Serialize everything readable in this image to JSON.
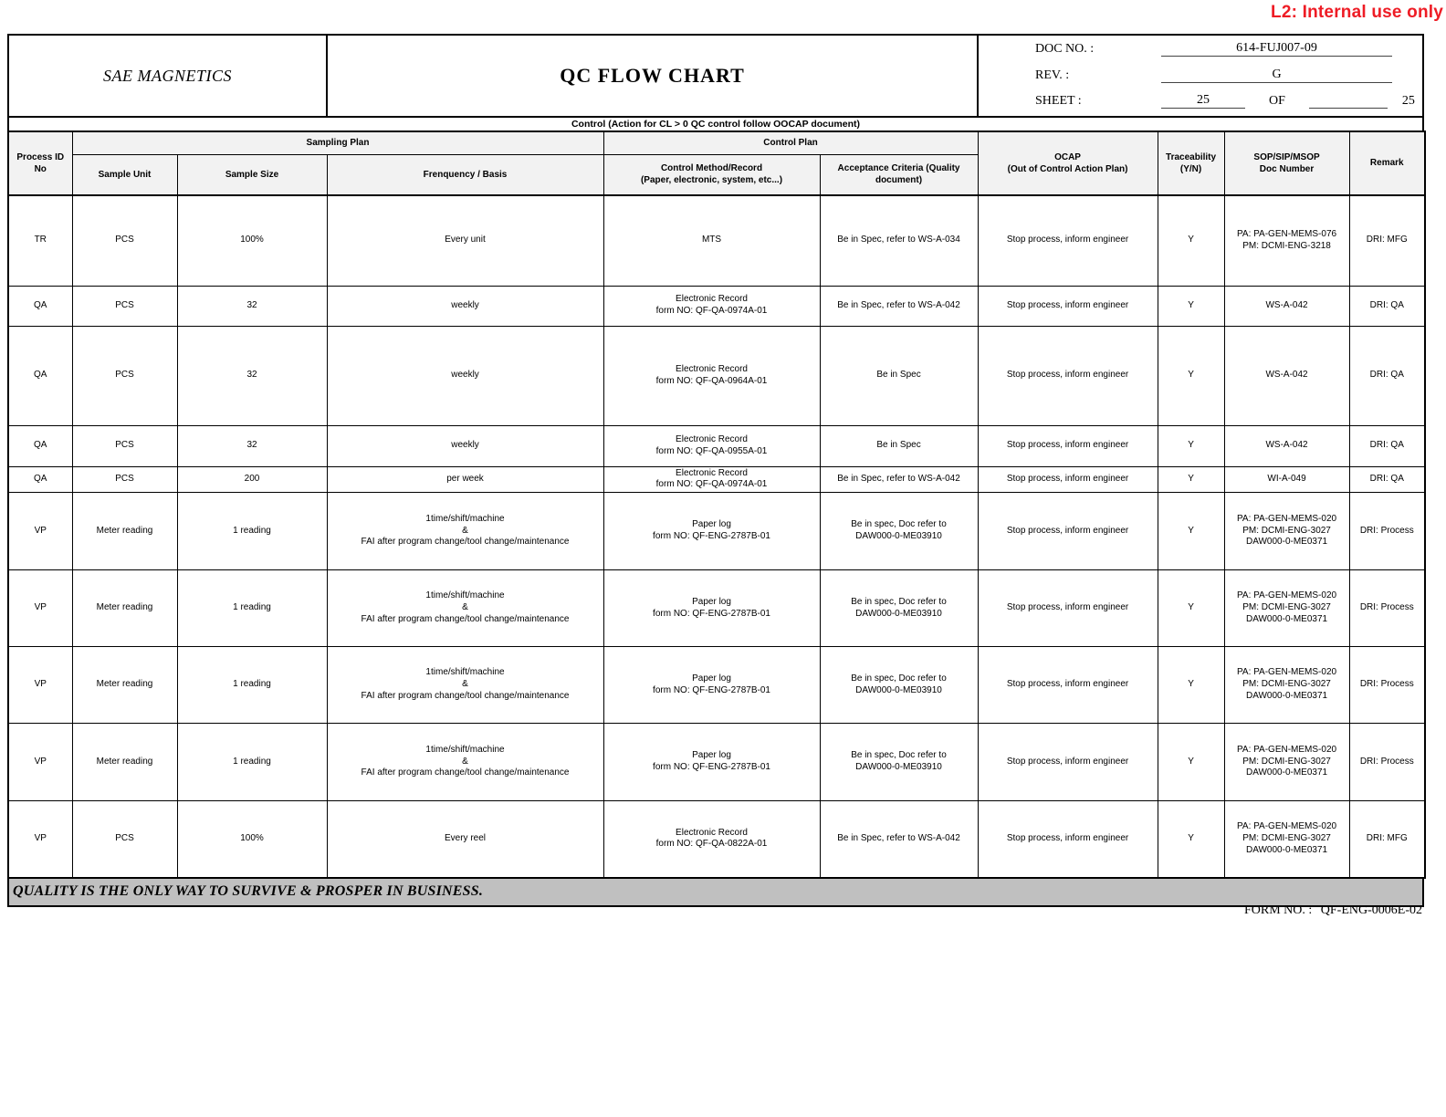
{
  "watermark": "L2: Internal use only",
  "header": {
    "company": "SAE MAGNETICS",
    "title": "QC FLOW CHART",
    "doc_no_label": "DOC NO.  :",
    "doc_no": "614-FUJ007-09",
    "rev_label": "REV.    :",
    "rev": "G",
    "sheet_label": "SHEET  :",
    "sheet": "25",
    "of_label": "OF",
    "sheet_total": "25"
  },
  "control_note": "Control (Action for CL > 0 QC control follow OOCAP document)",
  "table": {
    "headers": {
      "process_id": [
        "Process ID",
        "No"
      ],
      "sampling_plan": "Sampling Plan",
      "sample_unit": "Sample Unit",
      "sample_size": "Sample Size",
      "frequency": "Frenquency / Basis",
      "control_plan": "Control Plan",
      "control_method": [
        "Control Method/Record",
        "(Paper, electronic, system, etc...)"
      ],
      "acceptance": [
        "Acceptance Criteria (Quality",
        "document)"
      ],
      "ocap": [
        "OCAP",
        "(Out of Control Action Plan)"
      ],
      "traceability": [
        "Traceability",
        "(Y/N)"
      ],
      "sop": [
        "SOP/SIP/MSOP",
        "Doc Number"
      ],
      "remark": "Remark"
    },
    "rows": [
      {
        "cells": [
          [
            "TR"
          ],
          [
            "PCS"
          ],
          [
            "100%"
          ],
          [
            "Every unit"
          ],
          [
            "MTS"
          ],
          [
            "Be in Spec, refer to WS-A-034"
          ],
          [
            "Stop process, inform engineer"
          ],
          [
            "Y"
          ],
          [
            "PA: PA-GEN-MEMS-076",
            "PM: DCMI-ENG-3218"
          ],
          [
            "DRI: MFG"
          ]
        ]
      },
      {
        "cells": [
          [
            "QA"
          ],
          [
            "PCS"
          ],
          [
            "32"
          ],
          [
            "weekly"
          ],
          [
            "Electronic Record",
            "form NO: QF-QA-0974A-01"
          ],
          [
            "Be in Spec, refer to WS-A-042"
          ],
          [
            "Stop process, inform engineer"
          ],
          [
            "Y"
          ],
          [
            "WS-A-042"
          ],
          [
            "DRI: QA"
          ]
        ]
      },
      {
        "cells": [
          [
            "QA"
          ],
          [
            "PCS"
          ],
          [
            "32"
          ],
          [
            "weekly"
          ],
          [
            "Electronic Record",
            "form NO: QF-QA-0964A-01"
          ],
          [
            "Be in Spec"
          ],
          [
            "Stop process, inform engineer"
          ],
          [
            "Y"
          ],
          [
            "WS-A-042"
          ],
          [
            "DRI: QA"
          ]
        ]
      },
      {
        "cells": [
          [
            "QA"
          ],
          [
            "PCS"
          ],
          [
            "32"
          ],
          [
            "weekly"
          ],
          [
            "Electronic Record",
            "form NO: QF-QA-0955A-01"
          ],
          [
            "Be in Spec"
          ],
          [
            "Stop process, inform engineer"
          ],
          [
            "Y"
          ],
          [
            "WS-A-042"
          ],
          [
            "DRI: QA"
          ]
        ]
      },
      {
        "cells": [
          [
            "QA"
          ],
          [
            "PCS"
          ],
          [
            "200"
          ],
          [
            "per week"
          ],
          [
            "Electronic Record",
            "form NO: QF-QA-0974A-01"
          ],
          [
            "Be in Spec, refer to WS-A-042"
          ],
          [
            "Stop process, inform engineer"
          ],
          [
            "Y"
          ],
          [
            "WI-A-049"
          ],
          [
            "DRI: QA"
          ]
        ]
      },
      {
        "cells": [
          [
            "VP"
          ],
          [
            "Meter reading"
          ],
          [
            "1 reading"
          ],
          [
            "1time/shift/machine",
            "&",
            "FAI after program change/tool change/maintenance"
          ],
          [
            "Paper log",
            "form NO: QF-ENG-2787B-01"
          ],
          [
            "Be in spec, Doc refer to",
            "DAW000-0-ME03910"
          ],
          [
            "Stop process, inform engineer"
          ],
          [
            "Y"
          ],
          [
            "PA: PA-GEN-MEMS-020",
            "PM: DCMI-ENG-3027",
            "DAW000-0-ME0371"
          ],
          [
            "DRI: Process"
          ]
        ]
      },
      {
        "cells": [
          [
            "VP"
          ],
          [
            "Meter reading"
          ],
          [
            "1 reading"
          ],
          [
            "1time/shift/machine",
            "&",
            "FAI after program change/tool change/maintenance"
          ],
          [
            "Paper log",
            "form NO: QF-ENG-2787B-01"
          ],
          [
            "Be in spec, Doc refer to",
            "DAW000-0-ME03910"
          ],
          [
            "Stop process, inform engineer"
          ],
          [
            "Y"
          ],
          [
            "PA: PA-GEN-MEMS-020",
            "PM: DCMI-ENG-3027",
            "DAW000-0-ME0371"
          ],
          [
            "DRI: Process"
          ]
        ]
      },
      {
        "cells": [
          [
            "VP"
          ],
          [
            "Meter reading"
          ],
          [
            "1 reading"
          ],
          [
            "1time/shift/machine",
            "&",
            "FAI after program change/tool change/maintenance"
          ],
          [
            "Paper log",
            "form NO: QF-ENG-2787B-01"
          ],
          [
            "Be in spec, Doc refer to",
            "DAW000-0-ME03910"
          ],
          [
            "Stop process, inform engineer"
          ],
          [
            "Y"
          ],
          [
            "PA: PA-GEN-MEMS-020",
            "PM: DCMI-ENG-3027",
            "DAW000-0-ME0371"
          ],
          [
            "DRI: Process"
          ]
        ]
      },
      {
        "cells": [
          [
            "VP"
          ],
          [
            "Meter reading"
          ],
          [
            "1 reading"
          ],
          [
            "1time/shift/machine",
            "&",
            "FAI after program change/tool change/maintenance"
          ],
          [
            "Paper log",
            "form NO: QF-ENG-2787B-01"
          ],
          [
            "Be in spec, Doc refer to",
            "DAW000-0-ME03910"
          ],
          [
            "Stop process, inform engineer"
          ],
          [
            "Y"
          ],
          [
            "PA: PA-GEN-MEMS-020",
            "PM: DCMI-ENG-3027",
            "DAW000-0-ME0371"
          ],
          [
            "DRI: Process"
          ]
        ]
      },
      {
        "cells": [
          [
            "VP"
          ],
          [
            "PCS"
          ],
          [
            "100%"
          ],
          [
            "Every reel"
          ],
          [
            "Electronic Record",
            "form NO: QF-QA-0822A-01"
          ],
          [
            "Be in Spec, refer to WS-A-042"
          ],
          [
            "Stop process, inform engineer"
          ],
          [
            "Y"
          ],
          [
            "PA: PA-GEN-MEMS-020",
            "PM: DCMI-ENG-3027",
            "DAW000-0-ME0371"
          ],
          [
            "DRI: MFG"
          ]
        ]
      }
    ]
  },
  "footer": {
    "slogan": "QUALITY IS THE ONLY WAY TO SURVIVE & PROSPER IN BUSINESS.",
    "form_no_label": "FORM NO.  :",
    "form_no": "QF-ENG-0006E-02"
  },
  "colors": {
    "watermark_red": "#ee1c25",
    "header_fill": "#f2f2f2",
    "slogan_fill": "#c0c0c0"
  }
}
